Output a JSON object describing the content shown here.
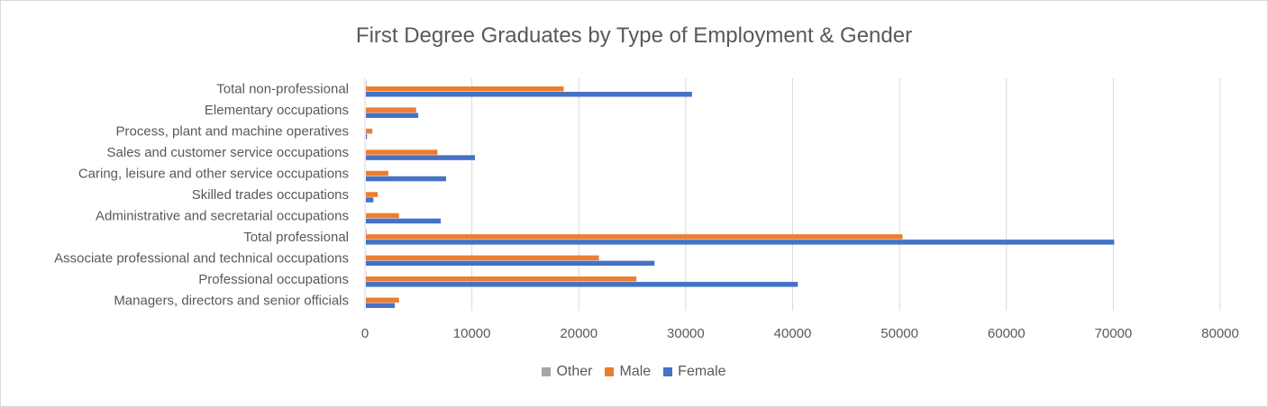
{
  "chart_data": {
    "type": "bar",
    "orientation": "horizontal",
    "title": "First Degree Graduates by Type of Employment & Gender",
    "categories": [
      "Managers, directors and senior officials",
      "Professional occupations",
      "Associate professional and technical occupations",
      "Total professional",
      "Administrative and secretarial occupations",
      "Skilled trades occupations",
      "Caring, leisure and other service occupations",
      "Sales and customer service occupations",
      "Process, plant and machine operatives",
      "Elementary occupations",
      "Total non-professional"
    ],
    "series": [
      {
        "name": "Other",
        "color": "#a5a5a5",
        "values": [
          10,
          30,
          25,
          60,
          10,
          5,
          10,
          15,
          5,
          15,
          50
        ]
      },
      {
        "name": "Male",
        "color": "#ed7d31",
        "values": [
          3100,
          25300,
          21800,
          50200,
          3100,
          1100,
          2100,
          6700,
          600,
          4700,
          18500
        ]
      },
      {
        "name": "Female",
        "color": "#4472c4",
        "values": [
          2700,
          40400,
          27000,
          70000,
          7000,
          700,
          7500,
          10200,
          100,
          4900,
          30500
        ]
      }
    ],
    "xlim": [
      0,
      80000
    ],
    "xticks": [
      "0",
      "10000",
      "20000",
      "30000",
      "40000",
      "50000",
      "60000",
      "70000",
      "80000"
    ],
    "grid": true,
    "legend_position": "bottom"
  }
}
